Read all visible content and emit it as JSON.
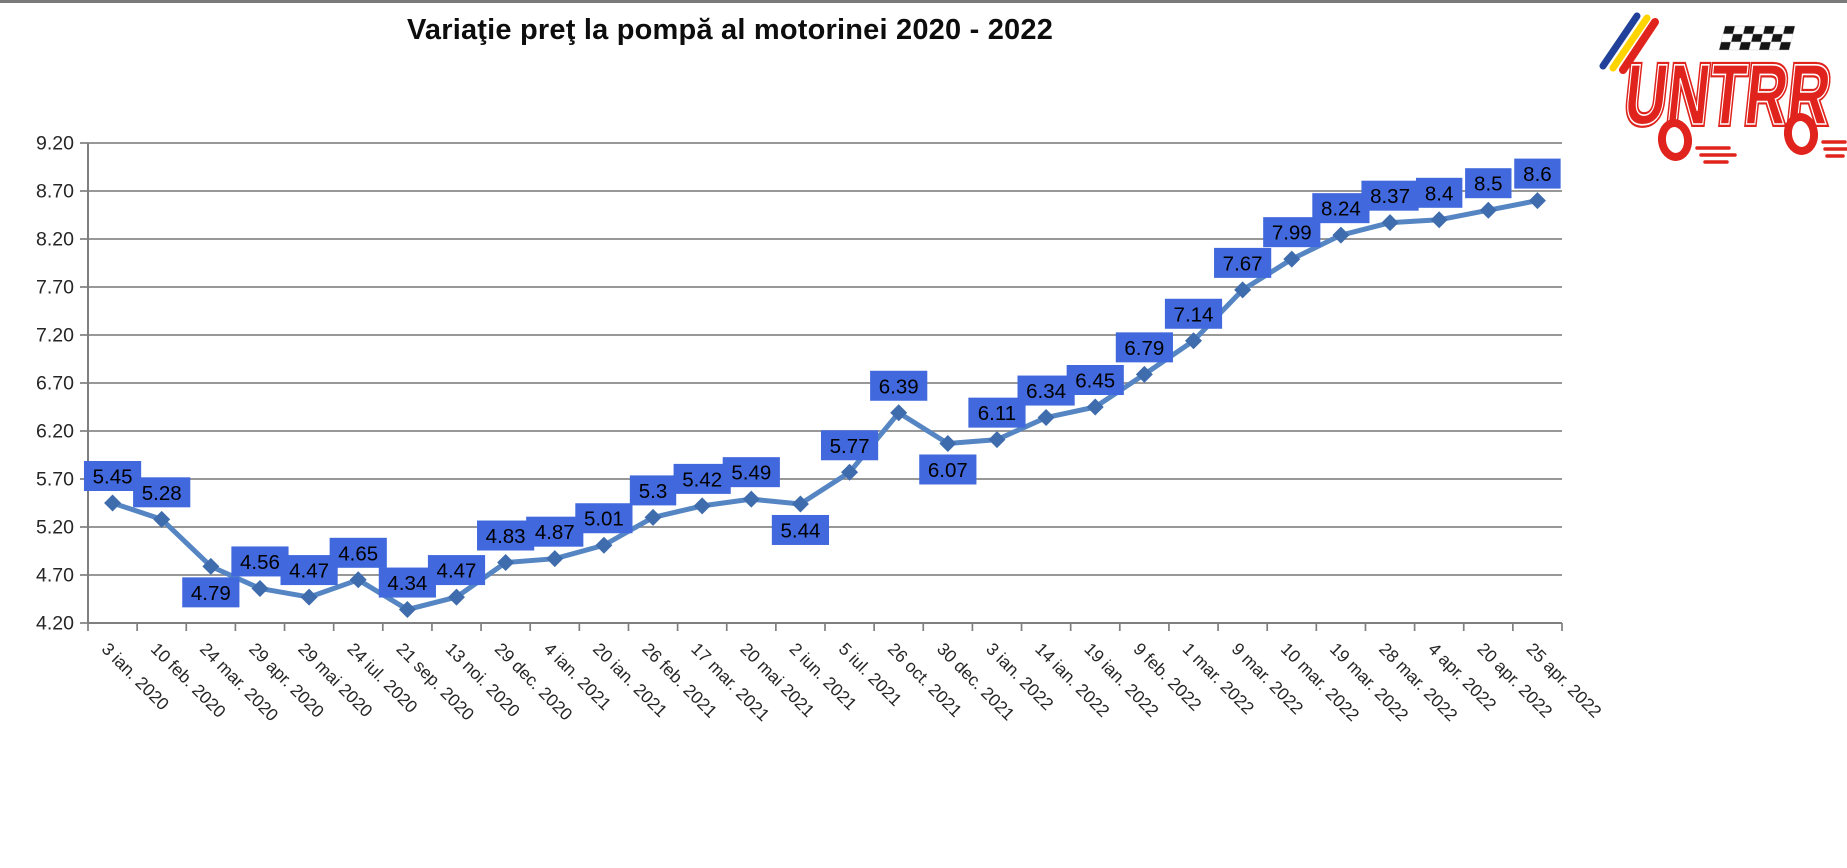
{
  "chart_data": {
    "type": "line",
    "title": "Variaţie preţ la pompă al motorinei 2020 - 2022",
    "categories": [
      "3 ian. 2020",
      "10 feb. 2020",
      "24 mar. 2020",
      "29 apr. 2020",
      "29 mai 2020",
      "24 iul. 2020",
      "21 sep. 2020",
      "13 noi. 2020",
      "29 dec. 2020",
      "4 ian. 2021",
      "20 ian. 2021",
      "26 feb. 2021",
      "17 mar. 2021",
      "20 mai 2021",
      "2 iun. 2021",
      "5 iul. 2021",
      "26 oct. 2021",
      "30 dec. 2021",
      "3 ian. 2022",
      "14 ian. 2022",
      "19 ian. 2022",
      "9 feb. 2022",
      "1 mar. 2022",
      "9 mar. 2022",
      "10 mar. 2022",
      "19 mar. 2022",
      "28 mar. 2022",
      "4 apr. 2022",
      "20 apr. 2022",
      "25 apr. 2022"
    ],
    "values": [
      5.45,
      5.28,
      4.79,
      4.56,
      4.47,
      4.65,
      4.34,
      4.47,
      4.83,
      4.87,
      5.01,
      5.3,
      5.42,
      5.49,
      5.44,
      5.77,
      6.39,
      6.07,
      6.11,
      6.34,
      6.45,
      6.79,
      7.14,
      7.67,
      7.99,
      8.24,
      8.37,
      8.4,
      8.5,
      8.6
    ],
    "data_labels": [
      "5.45",
      "5.28",
      "4.79",
      "4.56",
      "4.47",
      "4.65",
      "4.34",
      "4.47",
      "4.83",
      "4.87",
      "5.01",
      "5.3",
      "5.42",
      "5.49",
      "5.44",
      "5.77",
      "6.39",
      "6.07",
      "6.11",
      "6.34",
      "6.45",
      "6.79",
      "7.14",
      "7.67",
      "7.99",
      "8.24",
      "8.37",
      "8.4",
      "8.5",
      "8.6"
    ],
    "labels_below_point": [
      2,
      14,
      17
    ],
    "y_ticks": [
      "9.20",
      "8.70",
      "8.20",
      "7.70",
      "7.20",
      "6.70",
      "6.20",
      "5.70",
      "5.20",
      "4.70",
      "4.20"
    ],
    "ylim": [
      4.2,
      9.2
    ],
    "xlabel": "",
    "ylabel": "",
    "grid": true,
    "legend": false,
    "colors": {
      "line": "#5585c2",
      "marker": "#3f6cac",
      "label_box": "#4169dd",
      "label_text": "#000000",
      "grid": "#8a8a8a",
      "axis": "#7f7f7f",
      "tick_text": "#262626"
    }
  },
  "logo": {
    "name": "untrr-logo",
    "text": "UNTRR",
    "colors": {
      "red": "#e0231c",
      "blue": "#21409a",
      "yellow": "#ffd400",
      "black": "#151515"
    }
  }
}
